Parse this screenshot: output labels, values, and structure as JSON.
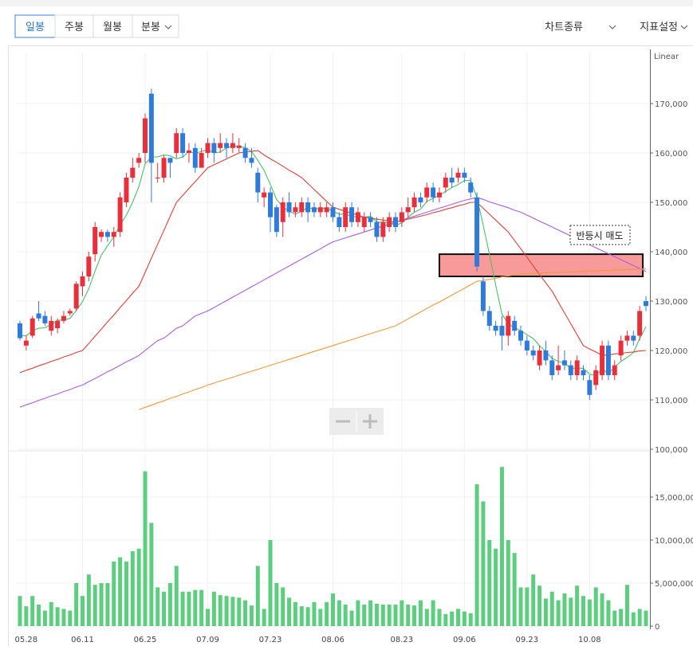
{
  "toolbar": {
    "tabs": [
      "일봉",
      "주봉",
      "월봉",
      "분봉"
    ],
    "right": [
      "차트종류",
      "지표설정"
    ]
  },
  "chart_data": [
    {
      "type": "candlestick",
      "scale_label": "Linear",
      "annotation": "반등시 매도",
      "zone": {
        "values": [
          135000,
          139500
        ],
        "color": "#f99a9a"
      },
      "up_color": "#e8303c",
      "down_color": "#2f7bd9",
      "grid": true,
      "ylim": [
        100000,
        180000
      ],
      "yticks": [
        {
          "value": 100000,
          "label": "100,000"
        },
        {
          "value": 110000,
          "label": "110,000"
        },
        {
          "value": 120000,
          "label": "120,000"
        },
        {
          "value": 130000,
          "label": "130,000"
        },
        {
          "value": 140000,
          "label": "140,000"
        },
        {
          "value": 150000,
          "label": "150,000"
        },
        {
          "value": 160000,
          "label": "160,000"
        },
        {
          "value": 170000,
          "label": "170,000"
        }
      ],
      "open": [
        125500,
        121000,
        123000,
        127500,
        127000,
        124000,
        124500,
        126000,
        127500,
        128500,
        133000,
        135000,
        139500,
        143000,
        144000,
        143000,
        144000,
        150000,
        155000,
        158000,
        160000,
        172000,
        155000,
        155000,
        159000,
        160000,
        164000,
        160000,
        161000,
        157000,
        160000,
        162000,
        161000,
        162000,
        161000,
        161000,
        161000,
        159000,
        156000,
        151000,
        152000,
        149000,
        146000,
        150000,
        148000,
        148000,
        150000,
        149000,
        148000,
        148000,
        149000,
        147000,
        145000,
        149000,
        146000,
        145000,
        147000,
        146000,
        143000,
        145000,
        147000,
        146000,
        148000,
        149000,
        151000,
        151000,
        153000,
        151000,
        153000,
        155000,
        155000,
        156000,
        154000,
        151000,
        134000,
        128000,
        125000,
        125000,
        123000,
        126000,
        124000,
        122000,
        120000,
        117000,
        120000,
        118000,
        116000,
        118000,
        117000,
        115000,
        116000,
        114000,
        113000,
        115000,
        121000,
        115000,
        119000,
        122000,
        123000,
        123000,
        130000
      ],
      "high": [
        126000,
        123000,
        127000,
        130000,
        128000,
        127000,
        126500,
        128000,
        128500,
        134000,
        136000,
        140000,
        146000,
        144500,
        144500,
        145000,
        152000,
        156000,
        159000,
        160000,
        168000,
        173000,
        158000,
        159500,
        159000,
        165000,
        165000,
        162000,
        162000,
        161000,
        163000,
        163000,
        164000,
        163000,
        164000,
        163000,
        162000,
        161000,
        157000,
        153000,
        153000,
        149500,
        151000,
        152000,
        150000,
        151000,
        151000,
        150000,
        150000,
        150000,
        150000,
        148000,
        150000,
        150000,
        149000,
        148000,
        148000,
        147000,
        147000,
        148000,
        148000,
        149000,
        151000,
        152000,
        152000,
        154000,
        154000,
        153000,
        156000,
        157000,
        157000,
        157000,
        155000,
        152000,
        135000,
        129000,
        126000,
        127000,
        128000,
        127000,
        125000,
        123000,
        121000,
        121000,
        122000,
        119000,
        121000,
        120000,
        118000,
        119000,
        117000,
        115000,
        117000,
        122000,
        122000,
        118000,
        123000,
        124000,
        124000,
        129000,
        131000
      ],
      "low": [
        122000,
        120000,
        122500,
        126000,
        125000,
        123000,
        123500,
        125500,
        127000,
        128000,
        131000,
        134000,
        138000,
        142000,
        142000,
        141000,
        143000,
        149000,
        154000,
        157000,
        158000,
        150000,
        154000,
        154000,
        155000,
        159000,
        159000,
        158000,
        156000,
        157000,
        159000,
        158000,
        160000,
        159000,
        160000,
        160000,
        158000,
        157000,
        150000,
        149000,
        144000,
        143000,
        143000,
        147000,
        147000,
        147000,
        146000,
        147000,
        147000,
        147000,
        146000,
        144000,
        144000,
        145000,
        145000,
        144000,
        145000,
        142000,
        142000,
        144000,
        144000,
        145000,
        147000,
        148000,
        149000,
        150000,
        150000,
        150000,
        152000,
        153000,
        154000,
        154000,
        151000,
        136000,
        127000,
        124000,
        123000,
        120000,
        121000,
        123000,
        121000,
        119000,
        118000,
        116000,
        117000,
        114000,
        115000,
        116000,
        114000,
        114000,
        114000,
        110000,
        112000,
        114000,
        114000,
        114000,
        118000,
        121000,
        121000,
        122000,
        128000
      ],
      "close": [
        122500,
        122000,
        126500,
        126500,
        125500,
        126000,
        126000,
        127000,
        128000,
        133500,
        135000,
        139000,
        145000,
        144000,
        143000,
        144000,
        151000,
        155000,
        157000,
        159000,
        167000,
        158000,
        155000,
        159000,
        158000,
        164000,
        160000,
        160500,
        157000,
        160000,
        162000,
        160000,
        162000,
        161000,
        162000,
        161500,
        159000,
        158000,
        152000,
        152000,
        147000,
        144000,
        150000,
        148000,
        149000,
        150000,
        148000,
        148000,
        149000,
        149000,
        147000,
        145000,
        149000,
        146000,
        148000,
        147000,
        146000,
        143000,
        146000,
        147000,
        145000,
        148000,
        149000,
        151000,
        150000,
        153000,
        151000,
        152000,
        155000,
        154000,
        156000,
        155000,
        152000,
        137000,
        128000,
        125000,
        124000,
        123000,
        127000,
        124000,
        122000,
        120000,
        119000,
        120000,
        118000,
        115000,
        117000,
        117000,
        115000,
        118000,
        115000,
        111000,
        116000,
        121000,
        115000,
        117000,
        122000,
        123000,
        122000,
        128000,
        129000
      ],
      "series": [
        {
          "color": "#4cbf6a",
          "values": [
            123000,
            123000,
            124000,
            124500,
            124600,
            125300,
            126100,
            126200,
            126500,
            128100,
            129900,
            132500,
            136100,
            139300,
            141200,
            143000,
            145400,
            147400,
            150000,
            153200,
            157800,
            159200,
            159200,
            159600,
            159400,
            158800,
            159200,
            160300,
            159900,
            160300,
            160700,
            160000,
            160200,
            161000,
            161400,
            161300,
            161100,
            160300,
            158500,
            156500,
            153600,
            150600,
            149000,
            148200,
            147600,
            148200,
            149000,
            148600,
            148800,
            148800,
            148200,
            147600,
            147600,
            147200,
            147000,
            147000,
            147200,
            146000,
            146000,
            145800,
            145400,
            145800,
            147000,
            148000,
            148600,
            150200,
            150800,
            151400,
            152200,
            153000,
            153600,
            154400,
            154400,
            151000,
            145400,
            139400,
            133200,
            127400,
            125400,
            124600,
            124000,
            123200,
            122400,
            121000,
            119800,
            118400,
            117800,
            117400,
            116400,
            116400,
            116400,
            115200,
            115000,
            116200,
            115400,
            116600,
            117800,
            118600,
            119600,
            122400,
            124800
          ]
        },
        {
          "color": "#e0403a",
          "values": [
            115500,
            116000,
            116400,
            116900,
            117300,
            117800,
            118200,
            118700,
            119100,
            119600,
            120000,
            121400,
            122900,
            124300,
            125800,
            127200,
            128700,
            130100,
            131600,
            133000,
            135800,
            138700,
            141500,
            144300,
            147200,
            150000,
            151400,
            152800,
            154200,
            155600,
            157000,
            157600,
            158200,
            158800,
            159400,
            160000,
            160200,
            160300,
            160500,
            159600,
            158800,
            158100,
            157300,
            156500,
            155800,
            155000,
            153800,
            152600,
            151400,
            150200,
            149000,
            148600,
            148200,
            147800,
            147400,
            147000,
            146800,
            146600,
            146400,
            146200,
            146000,
            146300,
            146600,
            146900,
            147200,
            147500,
            147900,
            148200,
            148600,
            148900,
            149300,
            149600,
            150000,
            150000,
            148800,
            147600,
            146400,
            145200,
            144000,
            142300,
            140600,
            138900,
            137100,
            135400,
            133700,
            132000,
            129800,
            127600,
            125400,
            123200,
            121000,
            120300,
            119700,
            119000,
            119100,
            119300,
            119400,
            119600,
            119700,
            119900,
            120000
          ]
        },
        {
          "color": "#a85ee0",
          "values": [
            108500,
            109000,
            109400,
            109900,
            110300,
            110800,
            111200,
            111700,
            112100,
            112600,
            113000,
            113700,
            114300,
            115000,
            115700,
            116300,
            117000,
            117700,
            118300,
            119000,
            120000,
            121000,
            122000,
            122500,
            123500,
            124500,
            125000,
            126000,
            127000,
            127500,
            128000,
            128700,
            129400,
            130100,
            130800,
            131500,
            132200,
            132900,
            133600,
            134300,
            135000,
            135700,
            136400,
            137100,
            137800,
            138500,
            139200,
            139900,
            140600,
            141300,
            142000,
            142400,
            142800,
            143200,
            143600,
            144000,
            144400,
            144800,
            145200,
            145600,
            146000,
            146400,
            146800,
            147200,
            147600,
            148000,
            148400,
            148800,
            149200,
            149600,
            150000,
            150400,
            150700,
            151000,
            150600,
            150100,
            149700,
            149300,
            148900,
            148400,
            148000,
            147400,
            146800,
            146200,
            145600,
            145000,
            144400,
            143800,
            143200,
            142600,
            142000,
            141400,
            140800,
            140200,
            139600,
            139000,
            138400,
            137800,
            137200,
            136600,
            136000
          ]
        },
        {
          "color": "#f09a3a",
          "values": [
            null,
            null,
            null,
            null,
            null,
            null,
            null,
            null,
            null,
            null,
            null,
            null,
            null,
            null,
            null,
            null,
            null,
            null,
            null,
            108000,
            108500,
            108900,
            109400,
            109800,
            110300,
            110700,
            111200,
            111600,
            112100,
            112500,
            113000,
            113400,
            113800,
            114200,
            114600,
            115000,
            115400,
            115800,
            116200,
            116600,
            117000,
            117400,
            117800,
            118200,
            118600,
            119000,
            119400,
            119800,
            120200,
            120600,
            121000,
            121400,
            121800,
            122200,
            122600,
            123000,
            123400,
            123800,
            124200,
            124600,
            125000,
            125700,
            126400,
            127100,
            127800,
            128500,
            129200,
            129800,
            130500,
            131200,
            131900,
            132600,
            133300,
            134000,
            134200,
            134400,
            134600,
            134900,
            135100,
            135300,
            135500,
            135600,
            135600,
            135700,
            135700,
            135800,
            135800,
            135900,
            135900,
            136000,
            136000,
            136100,
            136100,
            136200,
            136200,
            136300,
            136300,
            136400,
            136400,
            136500,
            136500
          ]
        }
      ]
    },
    {
      "type": "bar",
      "color": "#5dcd7f",
      "grid": true,
      "categories": [
        null,
        "05.28",
        null,
        null,
        null,
        null,
        null,
        null,
        null,
        null,
        "06.11",
        null,
        null,
        null,
        null,
        null,
        null,
        null,
        null,
        null,
        "06.25",
        null,
        null,
        null,
        null,
        null,
        null,
        null,
        null,
        null,
        "07.09",
        null,
        null,
        null,
        null,
        null,
        null,
        null,
        null,
        null,
        "07.23",
        null,
        null,
        null,
        null,
        null,
        null,
        null,
        null,
        null,
        "08.06",
        null,
        null,
        null,
        null,
        null,
        null,
        null,
        null,
        null,
        null,
        "08.23",
        null,
        null,
        null,
        null,
        null,
        null,
        null,
        null,
        null,
        "09.06",
        null,
        null,
        null,
        null,
        null,
        null,
        null,
        null,
        null,
        "09.23",
        null,
        null,
        null,
        null,
        null,
        null,
        null,
        null,
        null,
        "10.08",
        null,
        null,
        null,
        null,
        null,
        null,
        null,
        null,
        null
      ],
      "ylim": [
        0,
        20000000
      ],
      "yticks": [
        0,
        {
          "value": 5000000,
          "label": "5,000,000"
        },
        {
          "value": 10000000,
          "label": "10,000,000"
        },
        {
          "value": 15000000,
          "label": "15,000,000"
        }
      ],
      "values": [
        3500000,
        2300000,
        3500000,
        2500000,
        1800000,
        2800000,
        2200000,
        2000000,
        1800000,
        5000000,
        3500000,
        6000000,
        4800000,
        5000000,
        5000000,
        7500000,
        8000000,
        7500000,
        8700000,
        9000000,
        18000000,
        12000000,
        4500000,
        4000000,
        5000000,
        7000000,
        4000000,
        4000000,
        4200000,
        4200000,
        2000000,
        4000000,
        3600000,
        3500000,
        3400000,
        3300000,
        3000000,
        2400000,
        7000000,
        2000000,
        10000000,
        5000000,
        4500000,
        3300000,
        2800000,
        2300000,
        2200000,
        2800000,
        2000000,
        2800000,
        3800000,
        3000000,
        2500000,
        1800000,
        3000000,
        2500000,
        3000000,
        2600000,
        2500000,
        2500000,
        2500000,
        3000000,
        2500000,
        2400000,
        3000000,
        2000000,
        3000000,
        2000000,
        1400000,
        1700000,
        2000000,
        1700000,
        1500000,
        16500000,
        14500000,
        10000000,
        9000000,
        18500000,
        10000000,
        8500000,
        4500000,
        4500000,
        6000000,
        4700000,
        3200000,
        4000000,
        3000000,
        3800000,
        3300000,
        4700000,
        3500000,
        3100000,
        4500000,
        3800000,
        3000000,
        1800000,
        2000000,
        4800000,
        1600000,
        2000000,
        1800000
      ]
    }
  ]
}
